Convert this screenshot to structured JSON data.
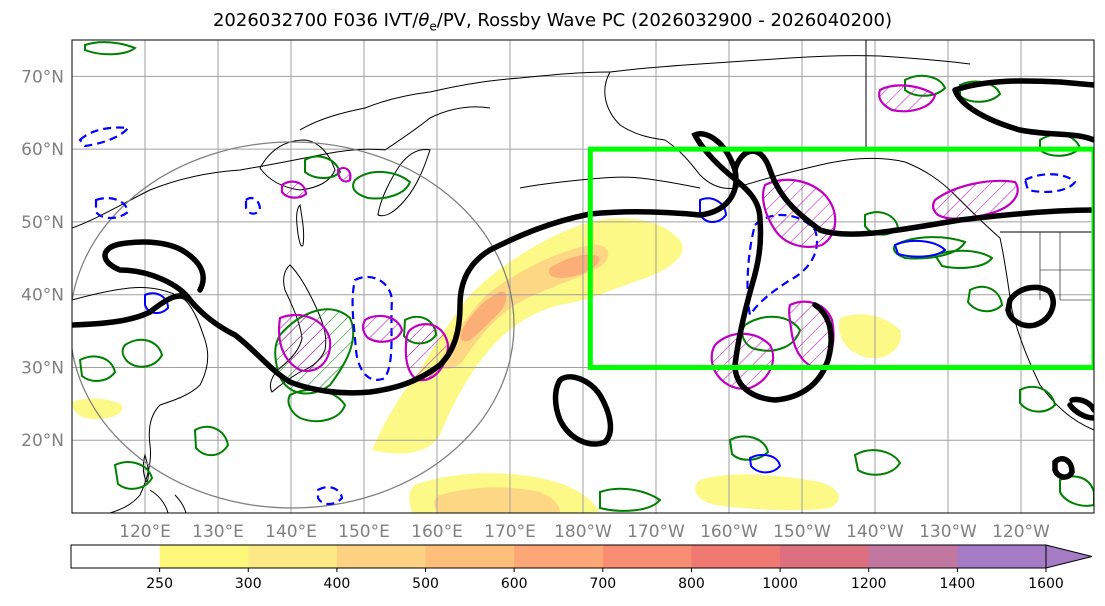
{
  "title": {
    "run": "2026032700 F036 IVT/",
    "theta": "θ",
    "theta_sub": "e",
    "rest": "/PV, Rossby Wave PC (2026032900 - 2026040200)"
  },
  "map": {
    "lon_range": [
      110,
      250
    ],
    "lat_range": [
      10,
      75
    ],
    "lat_ticks": [
      {
        "lat": 70,
        "label": "70°N"
      },
      {
        "lat": 60,
        "label": "60°N"
      },
      {
        "lat": 50,
        "label": "50°N"
      },
      {
        "lat": 40,
        "label": "40°N"
      },
      {
        "lat": 30,
        "label": "30°N"
      },
      {
        "lat": 20,
        "label": "20°N"
      }
    ],
    "lon_ticks": [
      {
        "lon": 120,
        "label": "120°E"
      },
      {
        "lon": 130,
        "label": "130°E"
      },
      {
        "lon": 140,
        "label": "140°E"
      },
      {
        "lon": 150,
        "label": "150°E"
      },
      {
        "lon": 160,
        "label": "160°E"
      },
      {
        "lon": 170,
        "label": "170°E"
      },
      {
        "lon": 180,
        "label": "180°W"
      },
      {
        "lon": 190,
        "label": "170°W"
      },
      {
        "lon": 200,
        "label": "160°W"
      },
      {
        "lon": 210,
        "label": "150°W"
      },
      {
        "lon": 220,
        "label": "140°W"
      },
      {
        "lon": 230,
        "label": "130°W"
      },
      {
        "lon": 240,
        "label": "120°W"
      }
    ],
    "region_box": {
      "lon_min": 181,
      "lon_max": 250,
      "lat_min": 30,
      "lat_max": 60,
      "color": "#00ff00"
    },
    "colors": {
      "coast": "#000000",
      "pv_contour": "#000000",
      "theta_pos": "#008000",
      "theta_neg": "#0000ff",
      "magenta": "#c000c0",
      "grid": "#a0a0a0",
      "circle": "#808080"
    }
  },
  "colorbar": {
    "levels": [
      250,
      300,
      400,
      500,
      600,
      700,
      800,
      1000,
      1200,
      1400,
      1600
    ],
    "labels": [
      "250",
      "300",
      "400",
      "500",
      "600",
      "700",
      "800",
      "1000",
      "1200",
      "1400",
      "1600"
    ],
    "colors": [
      "#ffffff",
      "#fdf87a",
      "#fde983",
      "#fdd383",
      "#fdbf7a",
      "#fca775",
      "#f88d71",
      "#f07972",
      "#dd6f80",
      "#c277a0",
      "#a57bc6",
      "#a57bc6"
    ]
  }
}
